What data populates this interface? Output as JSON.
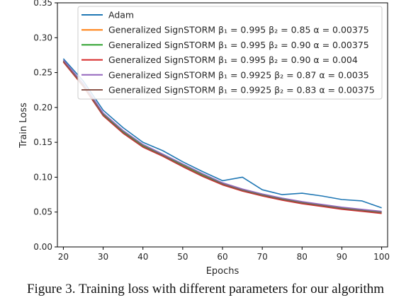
{
  "caption": "Figure 3. Training loss with different parameters for our algorithm",
  "chart_data": {
    "type": "line",
    "xlabel": "Epochs",
    "ylabel": "Train Loss",
    "xlim": [
      18.5,
      101.5
    ],
    "ylim": [
      0.0,
      0.35
    ],
    "xticks": [
      "20",
      "30",
      "40",
      "50",
      "60",
      "70",
      "80",
      "90",
      "100"
    ],
    "yticks": [
      "0.00",
      "0.05",
      "0.10",
      "0.15",
      "0.20",
      "0.25",
      "0.30",
      "0.35"
    ],
    "grid": false,
    "legend_position": "top-right",
    "x": [
      20,
      25,
      30,
      35,
      40,
      45,
      50,
      55,
      60,
      65,
      70,
      75,
      80,
      85,
      90,
      95,
      100
    ],
    "series": [
      {
        "name": "Adam",
        "color": "#1f77b4",
        "values": [
          0.27,
          0.238,
          0.196,
          0.171,
          0.15,
          0.138,
          0.122,
          0.108,
          0.095,
          0.1,
          0.082,
          0.075,
          0.077,
          0.073,
          0.068,
          0.066,
          0.056
        ]
      },
      {
        "name": "Generalized SignSTORM β1 = 0.995 β2 = 0.85 α = 0.00375",
        "color": "#ff7f0e",
        "values": [
          0.266,
          0.232,
          0.19,
          0.165,
          0.145,
          0.131,
          0.117,
          0.103,
          0.09,
          0.081,
          0.074,
          0.068,
          0.063,
          0.059,
          0.055,
          0.052,
          0.05
        ]
      },
      {
        "name": "Generalized SignSTORM β1 = 0.995 β2 = 0.90 α = 0.00375",
        "color": "#2ca02c",
        "values": [
          0.267,
          0.233,
          0.191,
          0.166,
          0.146,
          0.132,
          0.118,
          0.104,
          0.091,
          0.082,
          0.075,
          0.069,
          0.064,
          0.06,
          0.056,
          0.053,
          0.05
        ]
      },
      {
        "name": "Generalized SignSTORM β1 = 0.995 β2 = 0.90 α = 0.004",
        "color": "#d62728",
        "values": [
          0.265,
          0.23,
          0.188,
          0.163,
          0.143,
          0.13,
          0.115,
          0.101,
          0.089,
          0.08,
          0.073,
          0.067,
          0.062,
          0.058,
          0.054,
          0.051,
          0.048
        ]
      },
      {
        "name": "Generalized SignSTORM β1 = 0.9925 β2 = 0.87 α = 0.0035",
        "color": "#9467bd",
        "values": [
          0.268,
          0.234,
          0.192,
          0.167,
          0.147,
          0.133,
          0.119,
          0.105,
          0.092,
          0.083,
          0.076,
          0.07,
          0.065,
          0.061,
          0.057,
          0.054,
          0.051
        ]
      },
      {
        "name": "Generalized SignSTORM β1 = 0.9925 β2 = 0.83 α = 0.00375",
        "color": "#8c564b",
        "values": [
          0.266,
          0.231,
          0.189,
          0.164,
          0.144,
          0.131,
          0.116,
          0.102,
          0.09,
          0.081,
          0.074,
          0.068,
          0.063,
          0.059,
          0.055,
          0.052,
          0.049
        ]
      }
    ],
    "legend": [
      {
        "label": "Adam",
        "color": "#1f77b4"
      },
      {
        "label": "Generalized SignSTORM β₁ = 0.995 β₂ = 0.85 α = 0.00375",
        "color": "#ff7f0e"
      },
      {
        "label": "Generalized SignSTORM β₁ = 0.995 β₂ = 0.90 α = 0.00375",
        "color": "#2ca02c"
      },
      {
        "label": "Generalized SignSTORM β₁ = 0.995 β₂ = 0.90 α = 0.004",
        "color": "#d62728"
      },
      {
        "label": "Generalized SignSTORM β₁ = 0.9925 β₂ = 0.87 α = 0.0035",
        "color": "#9467bd"
      },
      {
        "label": "Generalized SignSTORM β₁ = 0.9925 β₂ = 0.83 α = 0.00375",
        "color": "#8c564b"
      }
    ]
  }
}
